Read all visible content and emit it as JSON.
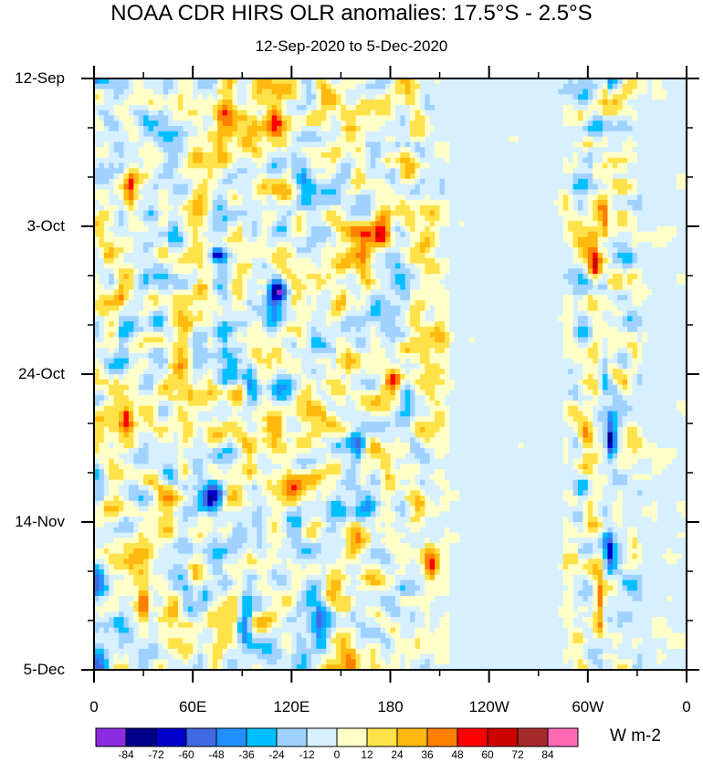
{
  "chart_data": {
    "type": "heatmap",
    "title": "NOAA CDR HIRS OLR anomalies: 17.5°S - 2.5°S",
    "subtitle": "12-Sep-2020 to 5-Dec-2020",
    "units": "W m-2",
    "y_tick_labels": [
      "12-Sep",
      "3-Oct",
      "24-Oct",
      "14-Nov",
      "5-Dec"
    ],
    "x_tick_labels": [
      "0",
      "60E",
      "120E",
      "180",
      "120W",
      "60W",
      "0"
    ],
    "x_range_deg_east": [
      0,
      360
    ],
    "y_range_days": [
      0,
      84
    ],
    "colorbar_levels": [
      "-84",
      "-72",
      "-60",
      "-48",
      "-36",
      "-24",
      "-12",
      "0",
      "12",
      "24",
      "36",
      "48",
      "60",
      "72",
      "84"
    ],
    "colorbar_colors": [
      "#8b2be2",
      "#00008b",
      "#0000cd",
      "#4169e1",
      "#1e90ff",
      "#00bfff",
      "#a0d2ff",
      "#d6f0ff",
      "#ffffc8",
      "#ffe24a",
      "#ffb90f",
      "#ff7f00",
      "#ff0000",
      "#cd0000",
      "#a52a2a",
      "#ff69b4"
    ],
    "features": [
      {
        "lon": 72,
        "day": 59,
        "value": -84,
        "lon_radius": 7,
        "day_radius": 2
      },
      {
        "lon": 75,
        "day": 25,
        "value": -60,
        "lon_radius": 5,
        "day_radius": 1
      },
      {
        "lon": 112,
        "day": 30,
        "value": -66,
        "lon_radius": 7,
        "day_radius": 2
      },
      {
        "lon": 92,
        "day": 77,
        "value": -58,
        "lon_radius": 4,
        "day_radius": 3
      },
      {
        "lon": 95,
        "day": 42,
        "value": -40,
        "lon_radius": 4,
        "day_radius": 3
      },
      {
        "lon": 130,
        "day": 15,
        "value": -36,
        "lon_radius": 6,
        "day_radius": 2
      },
      {
        "lon": 137,
        "day": 78,
        "value": -48,
        "lon_radius": 5,
        "day_radius": 3
      },
      {
        "lon": 160,
        "day": 53,
        "value": -30,
        "lon_radius": 5,
        "day_radius": 3
      },
      {
        "lon": 190,
        "day": 45,
        "value": -36,
        "lon_radius": 5,
        "day_radius": 2
      },
      {
        "lon": 310,
        "day": 40,
        "value": -40,
        "lon_radius": 3,
        "day_radius": 4
      },
      {
        "lon": 314,
        "day": 51,
        "value": -66,
        "lon_radius": 3,
        "day_radius": 3
      },
      {
        "lon": 313,
        "day": 67,
        "value": -60,
        "lon_radius": 3,
        "day_radius": 3
      },
      {
        "lon": 296,
        "day": 63,
        "value": -30,
        "lon_radius": 5,
        "day_radius": 2
      },
      {
        "lon": 48,
        "day": 22,
        "value": -30,
        "lon_radius": 4,
        "day_radius": 5
      },
      {
        "lon": 56,
        "day": 73,
        "value": -34,
        "lon_radius": 4,
        "day_radius": 4
      },
      {
        "lon": 18,
        "day": 38,
        "value": -24,
        "lon_radius": 4,
        "day_radius": 4
      },
      {
        "lon": 100,
        "day": 64,
        "value": -30,
        "lon_radius": 5,
        "day_radius": 3
      },
      {
        "lon": 170,
        "day": 32,
        "value": -24,
        "lon_radius": 5,
        "day_radius": 3
      },
      {
        "lon": 84,
        "day": 5,
        "value": 40,
        "lon_radius": 9,
        "day_radius": 3
      },
      {
        "lon": 158,
        "day": 8,
        "value": 30,
        "lon_radius": 8,
        "day_radius": 4
      },
      {
        "lon": 165,
        "day": 24,
        "value": 52,
        "lon_radius": 8,
        "day_radius": 3
      },
      {
        "lon": 175,
        "day": 22,
        "value": 40,
        "lon_radius": 5,
        "day_radius": 4
      },
      {
        "lon": 304,
        "day": 26,
        "value": 56,
        "lon_radius": 4,
        "day_radius": 4
      },
      {
        "lon": 310,
        "day": 20,
        "value": 48,
        "lon_radius": 3,
        "day_radius": 3
      },
      {
        "lon": 307,
        "day": 75,
        "value": 56,
        "lon_radius": 3,
        "day_radius": 4
      },
      {
        "lon": 299,
        "day": 51,
        "value": 48,
        "lon_radius": 4,
        "day_radius": 2
      },
      {
        "lon": 30,
        "day": 75,
        "value": 48,
        "lon_radius": 3,
        "day_radius": 3
      },
      {
        "lon": 55,
        "day": 36,
        "value": 36,
        "lon_radius": 6,
        "day_radius": 3
      },
      {
        "lon": 182,
        "day": 43,
        "value": 40,
        "lon_radius": 6,
        "day_radius": 2
      },
      {
        "lon": 178,
        "day": 57,
        "value": 40,
        "lon_radius": 6,
        "day_radius": 3
      },
      {
        "lon": 20,
        "day": 48,
        "value": 36,
        "lon_radius": 3,
        "day_radius": 2
      },
      {
        "lon": 22,
        "day": 16,
        "value": 36,
        "lon_radius": 3,
        "day_radius": 4
      },
      {
        "lon": 190,
        "day": 12,
        "value": 36,
        "lon_radius": 6,
        "day_radius": 3
      },
      {
        "lon": 120,
        "day": 58,
        "value": 30,
        "lon_radius": 8,
        "day_radius": 3
      },
      {
        "lon": 205,
        "day": 70,
        "value": 36,
        "lon_radius": 4,
        "day_radius": 3
      },
      {
        "lon": 140,
        "day": 2,
        "value": 36,
        "lon_radius": 5,
        "day_radius": 2
      },
      {
        "lon": 110,
        "day": 5,
        "value": 32,
        "lon_radius": 5,
        "day_radius": 3
      },
      {
        "lon": 310,
        "day": 1,
        "value": 30,
        "lon_radius": 2,
        "day_radius": 3
      },
      {
        "lon": 158,
        "day": 66,
        "value": 30,
        "lon_radius": 6,
        "day_radius": 3
      },
      {
        "lon": 16,
        "day": 31,
        "value": 30,
        "lon_radius": 4,
        "day_radius": 2
      },
      {
        "lon": 210,
        "day": 35,
        "value": 24,
        "lon_radius": 5,
        "day_radius": 4
      }
    ]
  }
}
